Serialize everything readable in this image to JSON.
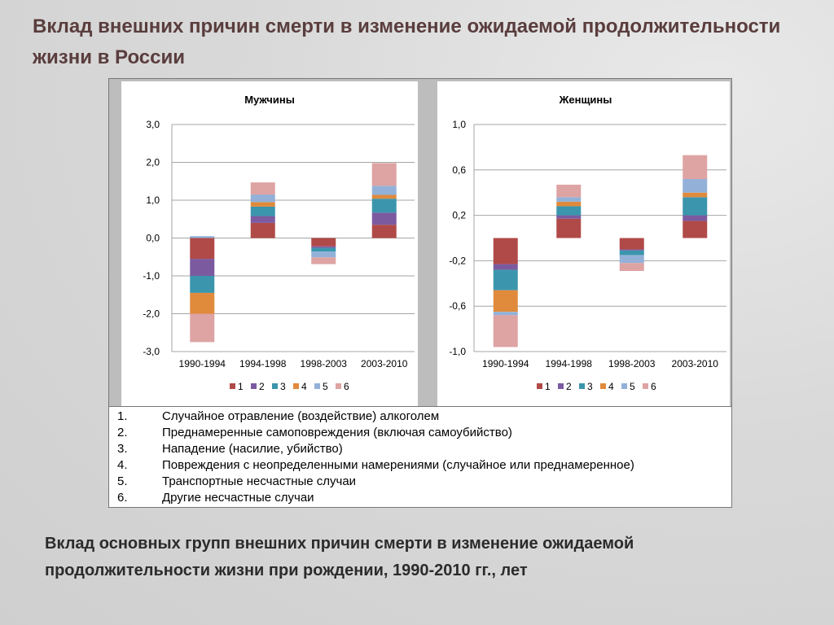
{
  "title": "Вклад внешних причин смерти в изменение ожидаемой продолжительности жизни в России",
  "caption": "Вклад основных групп внешних причин смерти в изменение ожидаемой продолжительности жизни при рождении, 1990-2010 гг., лет",
  "colors": [
    "#b04a48",
    "#7b5aa0",
    "#3b96ad",
    "#e08a3c",
    "#93b1d8",
    "#dea3a3"
  ],
  "chart_data": [
    {
      "type": "bar",
      "stacked": true,
      "title": "Мужчины",
      "categories": [
        "1990-1994",
        "1994-1998",
        "1998-2003",
        "2003-2010"
      ],
      "ylim": [
        -3.0,
        3.0
      ],
      "yticks": [
        3.0,
        2.0,
        1.0,
        0.0,
        -1.0,
        -2.0,
        -3.0
      ],
      "ytick_labels": [
        "3,0",
        "2,0",
        "1,0",
        "0,0",
        "-1,0",
        "-2,0",
        "-3,0"
      ],
      "grid": true,
      "legend_position": "bottom",
      "series": [
        {
          "name": "1",
          "values": [
            -0.55,
            0.4,
            -0.22,
            0.35
          ]
        },
        {
          "name": "2",
          "values": [
            -0.45,
            0.18,
            -0.04,
            0.32
          ]
        },
        {
          "name": "3",
          "values": [
            -0.45,
            0.25,
            -0.1,
            0.37
          ]
        },
        {
          "name": "4",
          "values": [
            -0.55,
            0.12,
            0.0,
            0.1
          ]
        },
        {
          "name": "5",
          "values": [
            0.05,
            0.2,
            -0.15,
            0.24
          ]
        },
        {
          "name": "6",
          "values": [
            -0.75,
            0.32,
            -0.18,
            0.6
          ]
        }
      ]
    },
    {
      "type": "bar",
      "stacked": true,
      "title": "Женщины",
      "categories": [
        "1990-1994",
        "1994-1998",
        "1998-2003",
        "2003-2010"
      ],
      "ylim": [
        -1.0,
        1.0
      ],
      "yticks": [
        1.0,
        0.6,
        0.2,
        -0.2,
        -0.6,
        -1.0
      ],
      "ytick_labels": [
        "1,0",
        "0,6",
        "0,2",
        "-0,2",
        "-0,6",
        "-1,0"
      ],
      "grid": true,
      "legend_position": "bottom",
      "series": [
        {
          "name": "1",
          "values": [
            -0.23,
            0.17,
            -0.1,
            0.15
          ]
        },
        {
          "name": "2",
          "values": [
            -0.05,
            0.03,
            -0.01,
            0.05
          ]
        },
        {
          "name": "3",
          "values": [
            -0.18,
            0.08,
            -0.04,
            0.16
          ]
        },
        {
          "name": "4",
          "values": [
            -0.19,
            0.04,
            0.0,
            0.04
          ]
        },
        {
          "name": "5",
          "values": [
            -0.03,
            0.04,
            -0.07,
            0.12
          ]
        },
        {
          "name": "6",
          "values": [
            -0.28,
            0.11,
            -0.07,
            0.21
          ]
        }
      ]
    }
  ],
  "legend": [
    {
      "num": "1.",
      "text": "Случайное отравление (воздействие) алкоголем"
    },
    {
      "num": "2.",
      "text": "Преднамеренные самоповреждения (включая самоубийство)"
    },
    {
      "num": "3.",
      "text": "Нападение (насилие, убийство)"
    },
    {
      "num": "4.",
      "text": "Повреждения с неопределенными намерениями (случайное или преднамеренное)"
    },
    {
      "num": "5.",
      "text": "Транспортные несчастные случаи"
    },
    {
      "num": "6.",
      "text": "Другие несчастные случаи"
    }
  ]
}
